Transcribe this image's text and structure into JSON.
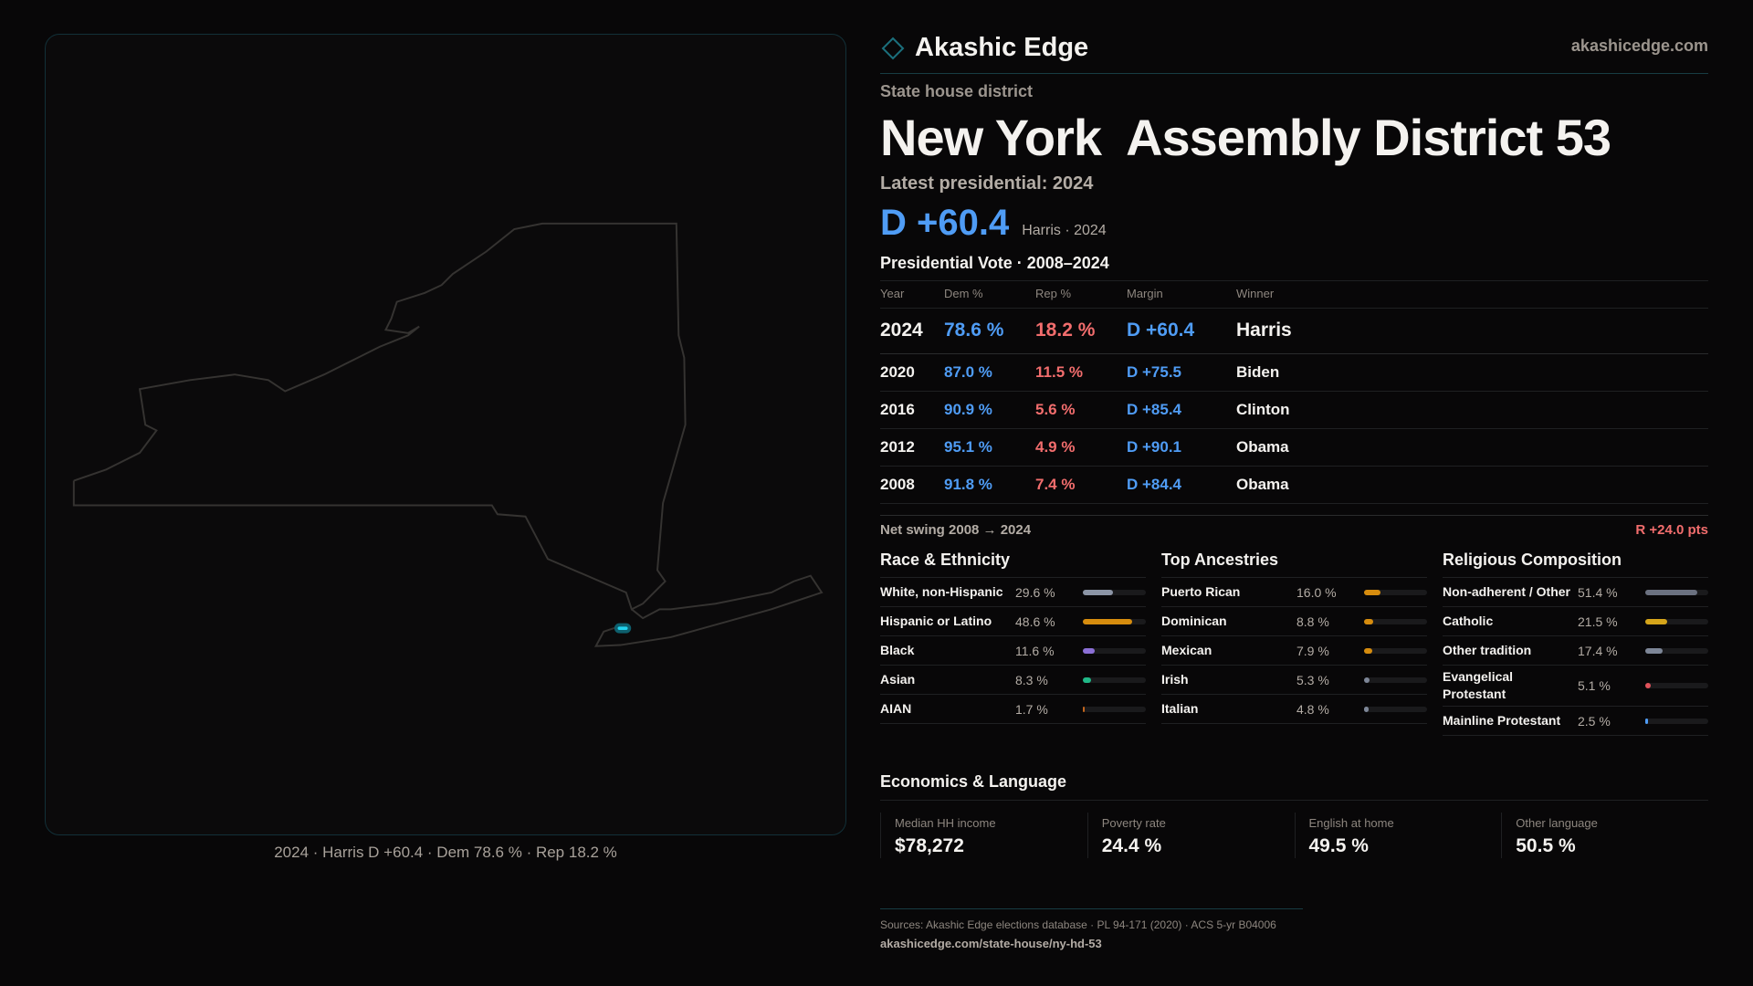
{
  "brand": {
    "name": "Akashic Edge",
    "site": "akashicedge.com",
    "accent": "#1b6f7c"
  },
  "map": {
    "caption": "2024 · Harris D +60.4 · Dem 78.6 % · Rep 18.2 %",
    "highlight_color": "#22d3ee"
  },
  "header": {
    "kicker": "State house district",
    "title": "New York  Assembly District 53",
    "latest": "Latest presidential: 2024",
    "margin": "D +60.4",
    "margin_sub": "Harris · 2024"
  },
  "vote": {
    "title": "Presidential Vote · 2008–2024",
    "columns": [
      "Year",
      "Dem %",
      "Rep %",
      "Margin",
      "Winner"
    ],
    "rows": [
      [
        "2024",
        "78.6 %",
        "18.2 %",
        "D +60.4",
        "Harris"
      ],
      [
        "2020",
        "87.0 %",
        "11.5 %",
        "D +75.5",
        "Biden"
      ],
      [
        "2016",
        "90.9 %",
        "5.6 %",
        "D +85.4",
        "Clinton"
      ],
      [
        "2012",
        "95.1 %",
        "4.9 %",
        "D +90.1",
        "Obama"
      ],
      [
        "2008",
        "91.8 %",
        "7.4 %",
        "D +84.4",
        "Obama"
      ]
    ],
    "swing_label": "Net swing 2008 → 2024",
    "swing_value": "R +24.0 pts"
  },
  "demographics": [
    {
      "title": "Race & Ethnicity",
      "items": [
        {
          "label": "White, non-Hispanic",
          "pct": "29.6 %",
          "value": 29.6,
          "color": "#8c95a6"
        },
        {
          "label": "Hispanic or Latino",
          "pct": "48.6 %",
          "value": 48.6,
          "color": "#d68c0e"
        },
        {
          "label": "Black",
          "pct": "11.6 %",
          "value": 11.6,
          "color": "#8b6fd6"
        },
        {
          "label": "Asian",
          "pct": "8.3 %",
          "value": 8.3,
          "color": "#20b887"
        },
        {
          "label": "AIAN",
          "pct": "1.7 %",
          "value": 1.7,
          "color": "#c2651d"
        }
      ]
    },
    {
      "title": "Top Ancestries",
      "items": [
        {
          "label": "Puerto Rican",
          "pct": "16.0 %",
          "value": 16.0,
          "color": "#d68c0e"
        },
        {
          "label": "Dominican",
          "pct": "8.8 %",
          "value": 8.8,
          "color": "#d68c0e"
        },
        {
          "label": "Mexican",
          "pct": "7.9 %",
          "value": 7.9,
          "color": "#d68c0e"
        },
        {
          "label": "Irish",
          "pct": "5.3 %",
          "value": 5.3,
          "color": "#7d8697"
        },
        {
          "label": "Italian",
          "pct": "4.8 %",
          "value": 4.8,
          "color": "#7d8697"
        }
      ]
    },
    {
      "title": "Religious Composition",
      "items": [
        {
          "label": "Non-adherent / Other",
          "pct": "51.4 %",
          "value": 51.4,
          "color": "#6b7180"
        },
        {
          "label": "Catholic",
          "pct": "21.5 %",
          "value": 21.5,
          "color": "#d6a51a"
        },
        {
          "label": "Other tradition",
          "pct": "17.4 %",
          "value": 17.4,
          "color": "#7d8697"
        },
        {
          "label": "Evangelical Protestant",
          "pct": "5.1 %",
          "value": 5.1,
          "color": "#e0525a"
        },
        {
          "label": "Mainline Protestant",
          "pct": "2.5 %",
          "value": 2.5,
          "color": "#4f9cf5"
        }
      ]
    }
  ],
  "economics": {
    "title": "Economics & Language",
    "cards": [
      {
        "label": "Median HH income",
        "value": "$78,272"
      },
      {
        "label": "Poverty rate",
        "value": "24.4 %"
      },
      {
        "label": "English at home",
        "value": "49.5 %"
      },
      {
        "label": "Other language",
        "value": "50.5 %"
      }
    ]
  },
  "footer": {
    "sources": "Sources: Akashic Edge elections database · PL 94-171 (2020) · ACS 5-yr B04006",
    "url": "akashicedge.com/state-house/ny-hd-53"
  }
}
